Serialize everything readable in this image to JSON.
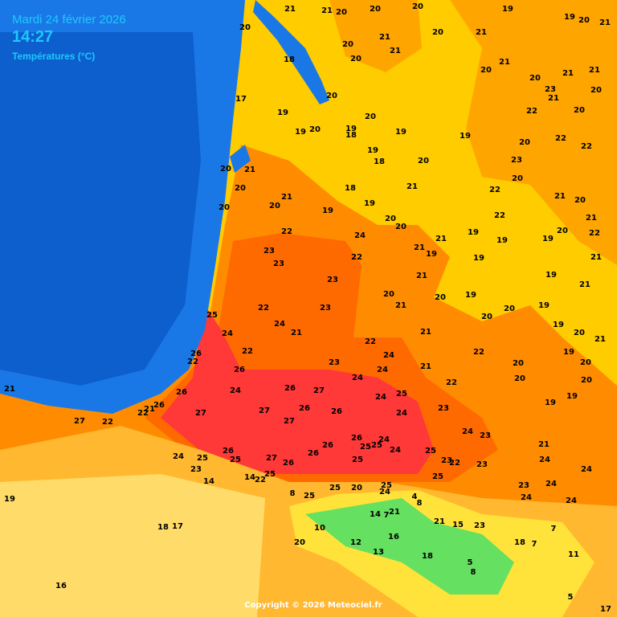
{
  "header": {
    "date": "Mardi 24 février 2026",
    "time": "14:27",
    "subtitle": "Températures (°C)"
  },
  "temperatures": [
    21,
    21,
    20,
    20,
    20,
    19,
    19,
    20,
    21,
    20,
    21,
    20,
    21,
    20,
    21,
    20,
    18,
    21,
    20,
    21,
    21,
    20,
    23,
    21,
    20,
    17,
    20,
    19,
    22,
    20,
    20,
    20,
    19,
    18,
    19,
    19,
    19,
    20,
    22,
    19,
    22,
    18,
    20,
    23,
    20,
    21,
    20,
    20,
    21,
    18,
    22,
    21,
    21,
    20,
    20,
    20,
    19,
    19,
    20,
    22,
    21,
    20,
    22,
    24,
    21,
    19,
    19,
    20,
    22,
    19,
    23,
    21,
    19,
    22,
    23,
    19,
    21,
    23,
    21,
    19,
    21,
    20,
    20,
    19,
    22,
    23,
    21,
    20,
    19,
    20,
    25,
    24,
    19,
    21,
    21,
    24,
    20,
    21,
    22,
    26,
    22,
    24,
    22,
    19,
    22,
    23,
    21,
    20,
    20,
    26,
    24,
    24,
    22,
    20,
    20,
    21,
    26,
    24,
    26,
    27,
    24,
    25,
    19,
    19,
    26,
    21,
    22,
    27,
    27,
    26,
    26,
    24,
    23,
    27,
    22,
    27,
    24,
    23,
    26,
    26,
    25,
    24,
    25,
    24,
    26,
    26,
    25,
    21,
    24,
    25,
    25,
    27,
    26,
    25,
    23,
    22,
    23,
    24,
    24,
    23,
    25,
    14,
    22,
    14,
    25,
    23,
    24,
    8,
    25,
    25,
    20,
    25,
    24,
    19,
    4,
    8,
    24,
    24,
    14,
    7,
    21,
    21,
    15,
    23,
    7,
    18,
    17,
    10,
    16,
    20,
    12,
    18,
    7,
    11,
    13,
    18,
    5,
    8,
    16,
    5,
    17
  ],
  "footer": {
    "copyright": "Copyright © 2026 Meteociel.fr"
  }
}
